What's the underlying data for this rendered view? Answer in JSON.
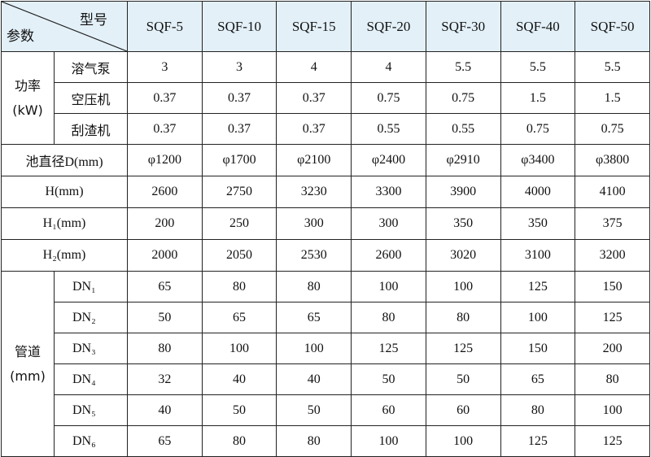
{
  "header": {
    "model_label": "型号",
    "param_label": "参数",
    "models": [
      "SQF-5",
      "SQF-10",
      "SQF-15",
      "SQF-20",
      "SQF-30",
      "SQF-40",
      "SQF-50"
    ]
  },
  "power": {
    "group_label": "功率",
    "group_unit": "(kW)",
    "rows": [
      {
        "label": "溶气泵",
        "values": [
          "3",
          "3",
          "4",
          "4",
          "5.5",
          "5.5",
          "5.5"
        ]
      },
      {
        "label": "空压机",
        "values": [
          "0.37",
          "0.37",
          "0.37",
          "0.75",
          "0.75",
          "1.5",
          "1.5"
        ]
      },
      {
        "label": "刮渣机",
        "values": [
          "0.37",
          "0.37",
          "0.37",
          "0.55",
          "0.55",
          "0.75",
          "0.75"
        ]
      }
    ]
  },
  "dims": [
    {
      "label": "池直径D(mm)",
      "values": [
        "φ1200",
        "φ1700",
        "φ2100",
        "φ2400",
        "φ2910",
        "φ3400",
        "φ3800"
      ]
    },
    {
      "label": "H(mm)",
      "values": [
        "2600",
        "2750",
        "3230",
        "3300",
        "3900",
        "4000",
        "4100"
      ]
    },
    {
      "label": "H₁(mm)",
      "values": [
        "200",
        "250",
        "300",
        "300",
        "350",
        "350",
        "375"
      ]
    },
    {
      "label": "H₂(mm)",
      "values": [
        "2000",
        "2050",
        "2530",
        "2600",
        "3020",
        "3100",
        "3200"
      ]
    }
  ],
  "pipes": {
    "group_label": "管道",
    "group_unit": "(mm)",
    "rows": [
      {
        "label": "DN₁",
        "values": [
          "65",
          "80",
          "80",
          "100",
          "100",
          "125",
          "150"
        ]
      },
      {
        "label": "DN₂",
        "values": [
          "50",
          "65",
          "65",
          "80",
          "80",
          "100",
          "125"
        ]
      },
      {
        "label": "DN₃",
        "values": [
          "80",
          "100",
          "100",
          "125",
          "125",
          "150",
          "200"
        ]
      },
      {
        "label": "DN₄",
        "values": [
          "32",
          "40",
          "40",
          "50",
          "50",
          "65",
          "80"
        ]
      },
      {
        "label": "DN₅",
        "values": [
          "40",
          "50",
          "50",
          "60",
          "60",
          "80",
          "100"
        ]
      },
      {
        "label": "DN₆",
        "values": [
          "65",
          "80",
          "80",
          "100",
          "100",
          "125",
          "125"
        ]
      }
    ]
  },
  "colors": {
    "header_bg": "#e3f0f8",
    "border": "#222222"
  }
}
